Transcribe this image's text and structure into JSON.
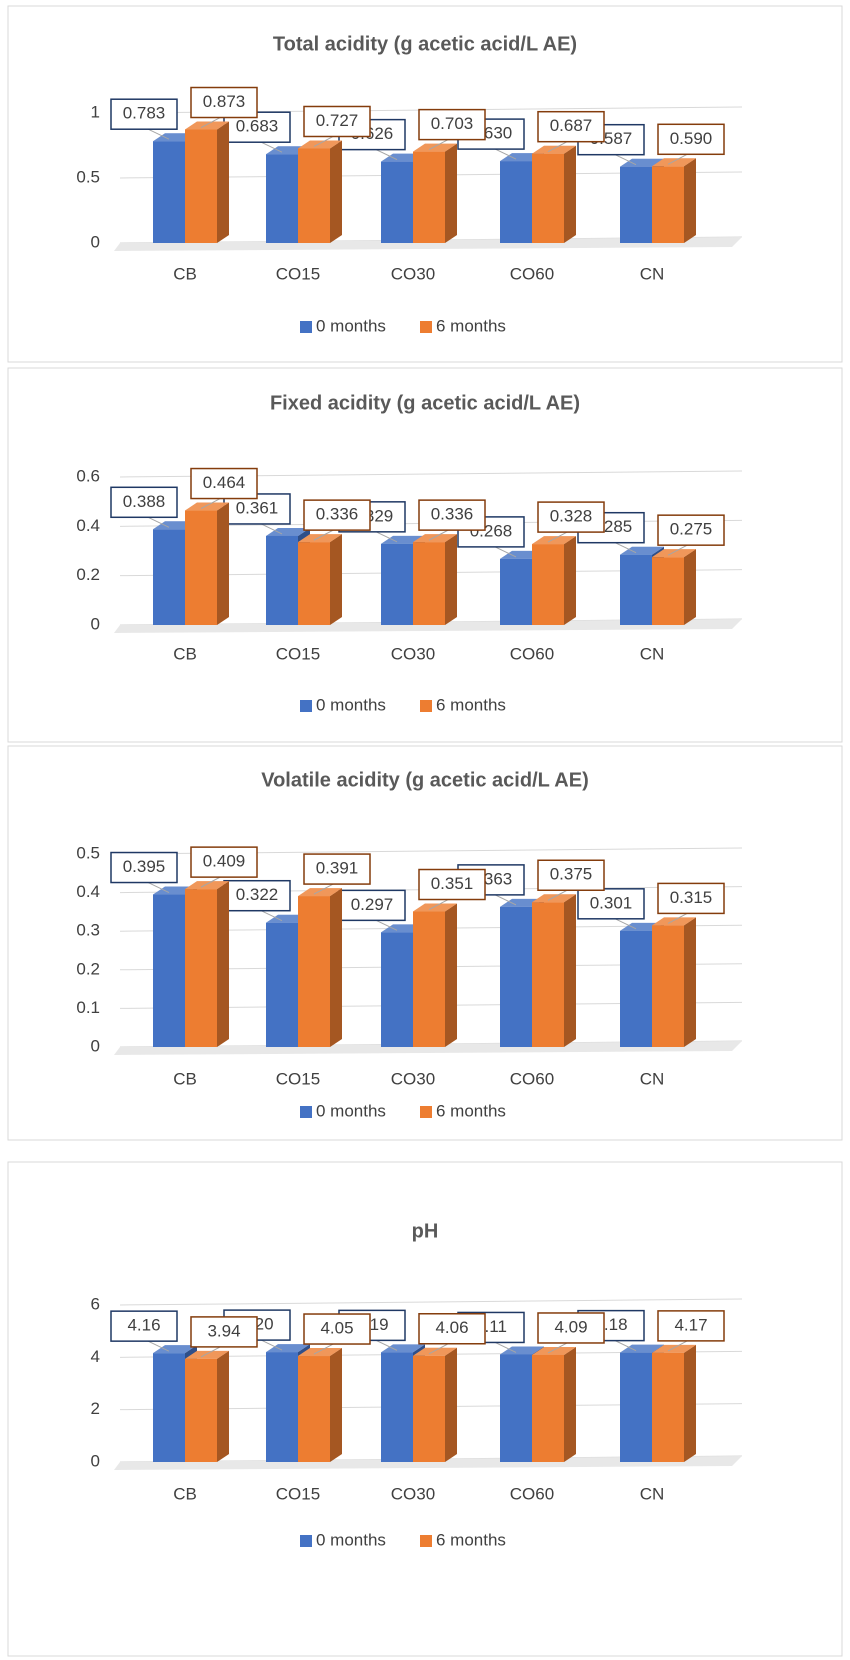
{
  "chart_data": [
    {
      "type": "bar",
      "title": "Total acidity (g acetic acid/L AE)",
      "categories": [
        "CB",
        "CO15",
        "CO30",
        "CO60",
        "CN"
      ],
      "series": [
        {
          "name": "0 months",
          "color": "#4472c4",
          "values": [
            0.783,
            0.683,
            0.626,
            0.63,
            0.587
          ],
          "value_labels": [
            "0.783",
            "0.683",
            "0.626",
            "0.630",
            "0.587"
          ]
        },
        {
          "name": "6 months",
          "color": "#ed7d31",
          "values": [
            0.873,
            0.727,
            0.703,
            0.687,
            0.59
          ],
          "value_labels": [
            "0.873",
            "0.727",
            "0.703",
            "0.687",
            "0.590"
          ]
        }
      ],
      "ylim": [
        0,
        1
      ],
      "yticks": [
        0,
        0.5,
        1
      ],
      "grid": true,
      "legend": "bottom"
    },
    {
      "type": "bar",
      "title": "Fixed acidity (g acetic acid/L AE)",
      "categories": [
        "CB",
        "CO15",
        "CO30",
        "CO60",
        "CN"
      ],
      "series": [
        {
          "name": "0 months",
          "color": "#4472c4",
          "values": [
            0.388,
            0.361,
            0.329,
            0.268,
            0.285
          ],
          "value_labels": [
            "0.388",
            "0.361",
            "0.329",
            "0.268",
            "0.285"
          ]
        },
        {
          "name": "6 months",
          "color": "#ed7d31",
          "values": [
            0.464,
            0.336,
            0.336,
            0.328,
            0.275
          ],
          "value_labels": [
            "0.464",
            "0.336",
            "0.336",
            "0.328",
            "0.275"
          ]
        }
      ],
      "ylim": [
        0,
        0.6
      ],
      "yticks": [
        0,
        0.2,
        0.4,
        0.6
      ],
      "grid": true,
      "legend": "bottom"
    },
    {
      "type": "bar",
      "title": "Volatile acidity (g acetic acid/L AE)",
      "categories": [
        "CB",
        "CO15",
        "CO30",
        "CO60",
        "CN"
      ],
      "series": [
        {
          "name": "0 months",
          "color": "#4472c4",
          "values": [
            0.395,
            0.322,
            0.297,
            0.363,
            0.301
          ],
          "value_labels": [
            "0.395",
            "0.322",
            "0.297",
            "0.363",
            "0.301"
          ]
        },
        {
          "name": "6 months",
          "color": "#ed7d31",
          "values": [
            0.409,
            0.391,
            0.351,
            0.375,
            0.315
          ],
          "value_labels": [
            "0.409",
            "0.391",
            "0.351",
            "0.375",
            "0.315"
          ]
        }
      ],
      "ylim": [
        0,
        0.5
      ],
      "yticks": [
        0,
        0.1,
        0.2,
        0.3,
        0.4,
        0.5
      ],
      "grid": true,
      "legend": "bottom"
    },
    {
      "type": "bar",
      "title": "pH",
      "categories": [
        "CB",
        "CO15",
        "CO30",
        "CO60",
        "CN"
      ],
      "series": [
        {
          "name": "0 months",
          "color": "#4472c4",
          "values": [
            4.16,
            4.2,
            4.19,
            4.11,
            4.18
          ],
          "value_labels": [
            "4.16",
            "4.20",
            "4.19",
            "4.11",
            "4.18"
          ]
        },
        {
          "name": "6 months",
          "color": "#ed7d31",
          "values": [
            3.94,
            4.05,
            4.06,
            4.09,
            4.17
          ],
          "value_labels": [
            "3.94",
            "4.05",
            "4.06",
            "4.09",
            "4.17"
          ]
        }
      ],
      "ylim": [
        0,
        6
      ],
      "yticks": [
        0,
        2,
        4,
        6
      ],
      "grid": true,
      "legend": "bottom"
    }
  ]
}
